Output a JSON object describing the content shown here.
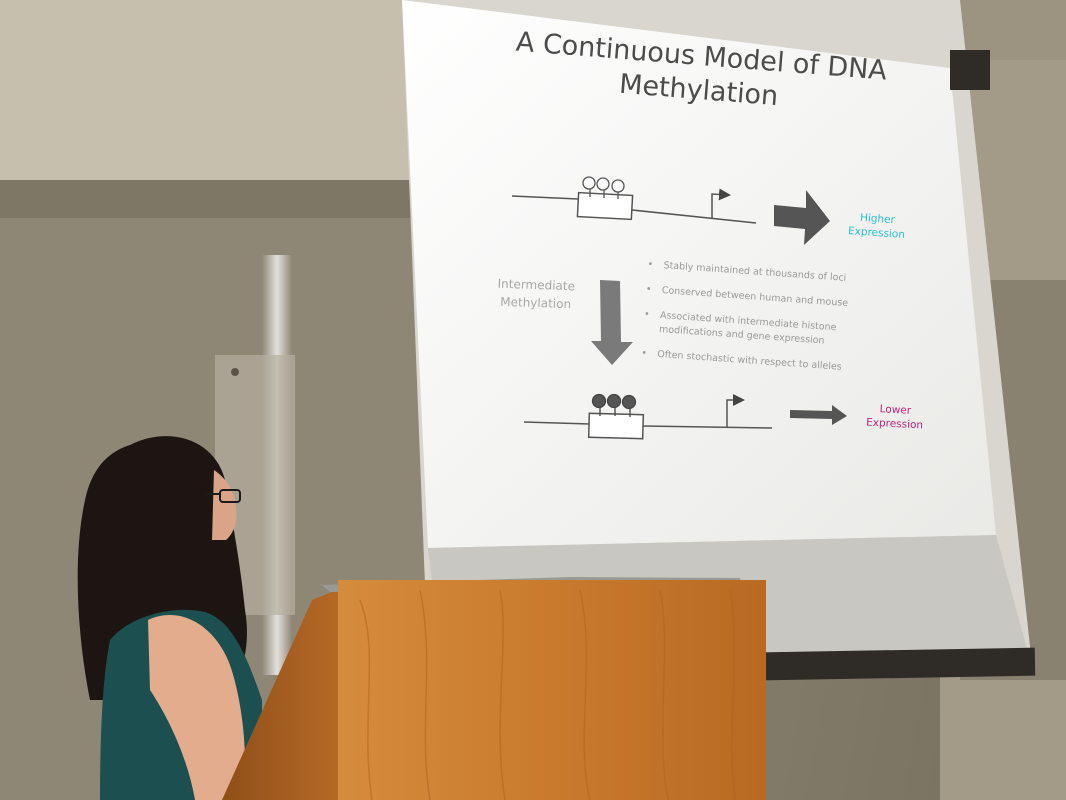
{
  "slide": {
    "title_lines": [
      "A Continuous Model of DNA",
      "Methylation"
    ],
    "higher_label": [
      "Higher",
      "Expression"
    ],
    "lower_label": [
      "Lower",
      "Expression"
    ],
    "intermediate_label": [
      "Intermediate",
      "Methylation"
    ],
    "bullets": [
      "Stably maintained at thousands of loci",
      "Conserved between human and mouse",
      "Associated with intermediate histone modifications and gene expression",
      "Often stochastic with respect to alleles"
    ]
  },
  "colors": {
    "higher_expression": "#2bc1d6",
    "lower_expression": "#c0247e",
    "screen": "#f4f4f1",
    "podium": "#c8782e"
  }
}
